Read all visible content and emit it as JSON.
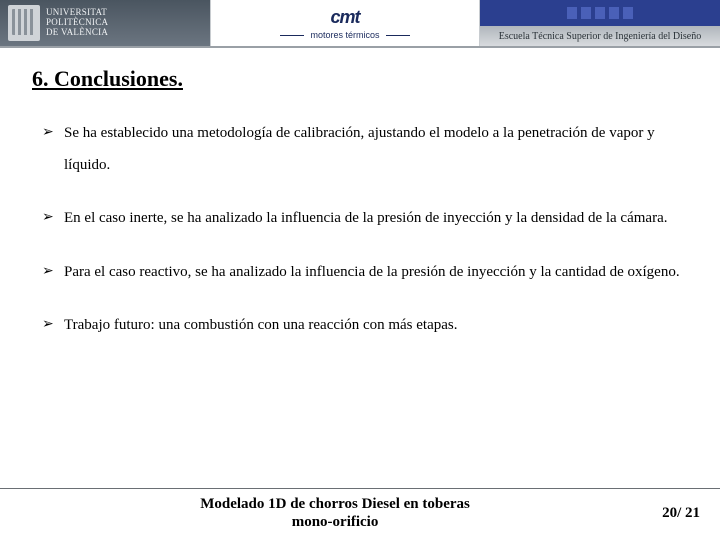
{
  "header": {
    "upv_line1": "UNIVERSITAT",
    "upv_line2": "POLITÈCNICA",
    "upv_line3": "DE VALÈNCIA",
    "cmt_logo": "cmt",
    "cmt_sub": "motores térmicos",
    "etsid": "Escuela Técnica Superior de Ingeniería del Diseño"
  },
  "title": "6. Conclusiones.",
  "bullets": [
    "Se ha establecido una metodología de calibración, ajustando el modelo a la penetración de vapor y líquido.",
    "En el caso inerte, se ha analizado la influencia de la presión de inyección y la densidad de la cámara.",
    "Para el caso reactivo, se ha analizado la influencia de la presión de inyección y la cantidad de oxígeno.",
    "Trabajo futuro: una combustión con una reacción con más etapas."
  ],
  "footer": {
    "title_line1": "Modelado 1D de chorros Diesel en toberas",
    "title_line2": "mono-orificio",
    "page": "20/ 21"
  },
  "colors": {
    "header_navy": "#2b3f8f",
    "text": "#000000",
    "divider": "#6a6f74"
  }
}
